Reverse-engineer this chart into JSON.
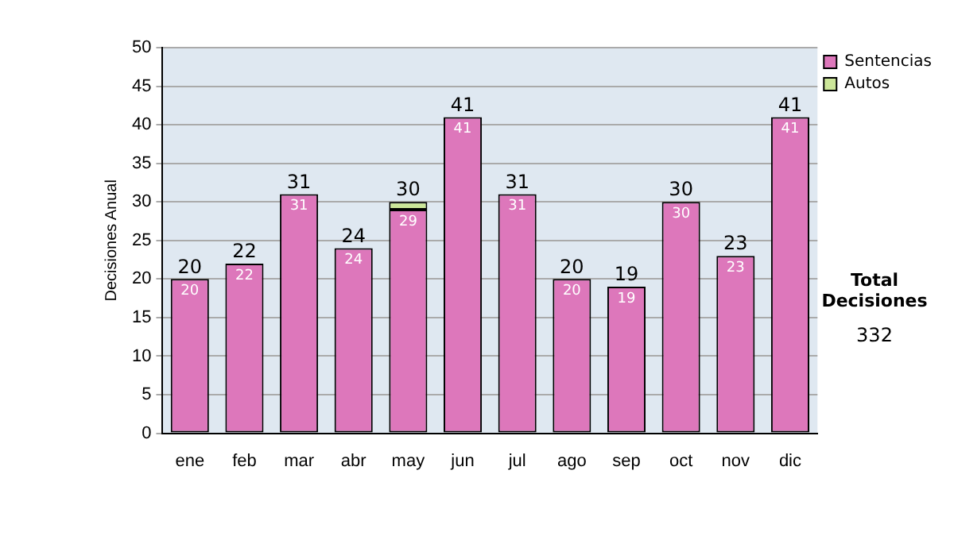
{
  "chart_data": {
    "type": "bar",
    "ylabel": "Decisiones Anual",
    "categories": [
      "ene",
      "feb",
      "mar",
      "abr",
      "may",
      "jun",
      "jul",
      "ago",
      "sep",
      "oct",
      "nov",
      "dic"
    ],
    "stacked": true,
    "series": [
      {
        "name": "Sentencias",
        "color": "#dd77bb",
        "values": [
          20,
          22,
          31,
          24,
          29,
          41,
          31,
          20,
          19,
          30,
          23,
          41
        ],
        "value_labels": [
          "20",
          "22",
          "31",
          "24",
          "29",
          "41",
          "31",
          "20",
          "19",
          "30",
          "23",
          "41"
        ]
      },
      {
        "name": "Autos",
        "color": "#cce699",
        "values": [
          0,
          0,
          0,
          0,
          1,
          0,
          0,
          0,
          0,
          0,
          0,
          0
        ],
        "value_labels": [
          null,
          null,
          null,
          null,
          null,
          null,
          null,
          null,
          null,
          null,
          null,
          null
        ]
      }
    ],
    "totals": [
      "20",
      "22",
      "31",
      "24",
      "30",
      "41",
      "31",
      "20",
      "19",
      "30",
      "23",
      "41"
    ],
    "ylim": [
      0,
      50
    ],
    "yticks": [
      0,
      5,
      10,
      15,
      20,
      25,
      30,
      35,
      40,
      45,
      50
    ],
    "grid": "y",
    "legend": "right",
    "annotations": [
      "Total Decisiones",
      "332"
    ]
  }
}
